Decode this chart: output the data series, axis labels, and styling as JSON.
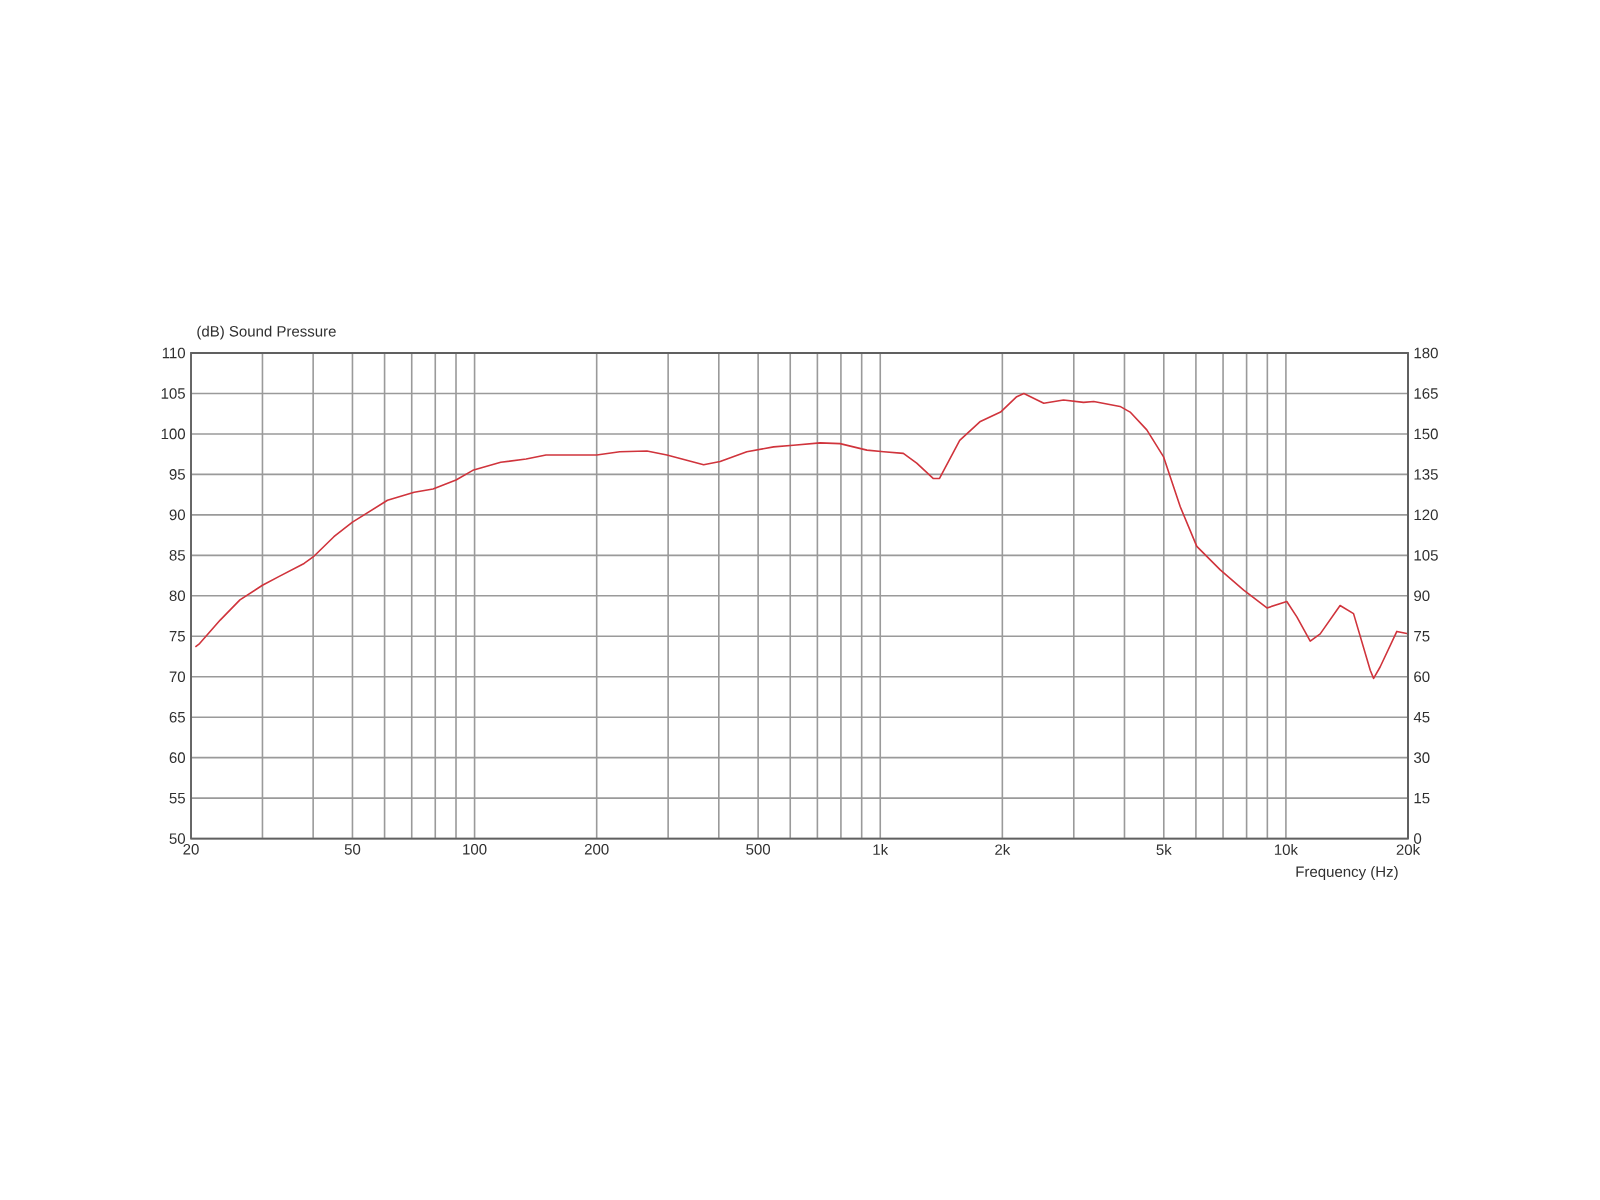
{
  "chart_data": {
    "type": "line",
    "ylabel": "(dB) Sound Pressure",
    "xlabel": "Frequency (Hz)",
    "x": [
      20.5,
      21,
      23.6,
      26.4,
      30,
      33,
      38,
      40,
      45,
      50,
      61,
      71,
      79,
      90,
      99,
      116,
      134,
      150,
      200,
      228,
      266,
      298,
      367,
      403,
      469,
      546,
      611,
      711,
      796,
      927,
      1020,
      1140,
      1230,
      1350,
      1400,
      1570,
      1760,
      1980,
      2170,
      2260,
      2530,
      2830,
      3170,
      3360,
      3900,
      4130,
      4540,
      4990,
      5490,
      6030,
      6890,
      7870,
      8980,
      10050,
      10640,
      11480,
      12150,
      13600,
      14680,
      16140,
      16450,
      17070,
      18770,
      20000
    ],
    "series": [
      {
        "color": "#d0343c",
        "values": [
          73.7,
          74.1,
          77.0,
          79.5,
          81.3,
          82.4,
          84.0,
          84.8,
          87.3,
          89.1,
          91.8,
          92.8,
          93.2,
          94.3,
          95.5,
          96.5,
          96.9,
          97.4,
          97.4,
          97.8,
          97.9,
          97.4,
          96.2,
          96.6,
          97.8,
          98.4,
          98.6,
          98.9,
          98.8,
          98.0,
          97.8,
          97.6,
          96.4,
          94.5,
          94.5,
          99.2,
          101.5,
          102.7,
          104.6,
          105.0,
          103.8,
          104.2,
          103.9,
          104.0,
          103.4,
          102.7,
          100.5,
          97.2,
          91.0,
          86.1,
          83.2,
          80.7,
          78.5,
          79.3,
          77.4,
          74.4,
          75.3,
          78.8,
          77.8,
          70.8,
          69.8,
          71.2,
          75.6,
          75.3
        ]
      }
    ],
    "log": "x",
    "xlim": [
      20,
      20000
    ],
    "xticks": [
      20,
      {
        "value": 30,
        "label": null
      },
      {
        "value": 40,
        "label": null
      },
      50,
      {
        "value": 60,
        "label": null
      },
      {
        "value": 70,
        "label": null
      },
      {
        "value": 80,
        "label": null
      },
      {
        "value": 90,
        "label": null
      },
      100,
      200,
      {
        "value": 300,
        "label": null
      },
      {
        "value": 400,
        "label": null
      },
      500,
      {
        "value": 600,
        "label": null
      },
      {
        "value": 700,
        "label": null
      },
      {
        "value": 800,
        "label": null
      },
      {
        "value": 900,
        "label": null
      },
      {
        "value": 1000,
        "label": "1k"
      },
      {
        "value": 2000,
        "label": "2k"
      },
      {
        "value": 3000,
        "label": null
      },
      {
        "value": 4000,
        "label": null
      },
      {
        "value": 5000,
        "label": "5k"
      },
      {
        "value": 6000,
        "label": null
      },
      {
        "value": 7000,
        "label": null
      },
      {
        "value": 8000,
        "label": null
      },
      {
        "value": 9000,
        "label": null
      },
      {
        "value": 10000,
        "label": "10k"
      },
      {
        "value": 20000,
        "label": "20k"
      }
    ],
    "ylim": [
      50,
      110
    ],
    "yticks": [
      50,
      55,
      60,
      65,
      70,
      75,
      80,
      85,
      90,
      95,
      100,
      105,
      110
    ],
    "y2lim": [
      0,
      180
    ],
    "y2ticks": [
      0,
      15,
      30,
      45,
      60,
      75,
      90,
      105,
      120,
      135,
      150,
      165,
      180
    ],
    "grid": true,
    "marker": "none",
    "line_style": "solid"
  }
}
